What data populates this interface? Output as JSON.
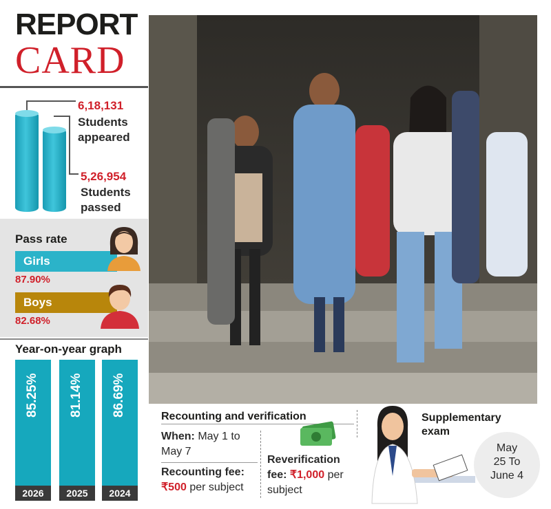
{
  "header": {
    "title_line1": "REPORT",
    "title_line2": "CARD"
  },
  "stats": {
    "appeared_number": "6,18,131",
    "appeared_label_1": "Students",
    "appeared_label_2": "appeared",
    "passed_number": "5,26,954",
    "passed_label_1": "Students",
    "passed_label_2": "passed"
  },
  "pass_rate": {
    "title": "Pass rate",
    "girls_label": "Girls",
    "girls_value": "87.90%",
    "boys_label": "Boys",
    "boys_value": "82.68%"
  },
  "yoy": {
    "title": "Year-on-year graph",
    "bars": [
      {
        "year": "2026",
        "value": "85.25%"
      },
      {
        "year": "2025",
        "value": "81.14%"
      },
      {
        "year": "2024",
        "value": "86.69%"
      }
    ]
  },
  "recounting": {
    "title": "Recounting and verification",
    "when_label": "When:",
    "when_value_1": "May 1 to",
    "when_value_2": "May 7",
    "fee_label": "Recounting fee:",
    "fee_amount": "₹500",
    "fee_suffix": "per subject",
    "reverif_label_1": "Reverification",
    "reverif_label_2": "fee:",
    "reverif_amount": "₹1,000",
    "reverif_suffix_1": "per",
    "reverif_suffix_2": "subject"
  },
  "supplementary": {
    "title_1": "Supplementary",
    "title_2": "exam",
    "date_1": "May",
    "date_2": "25 To",
    "date_3": "June 4"
  },
  "colors": {
    "accent_red": "#d0202a",
    "teal": "#16a8bd",
    "boys_bar": "#b8860b",
    "girls_bar": "#2bb3c9"
  }
}
